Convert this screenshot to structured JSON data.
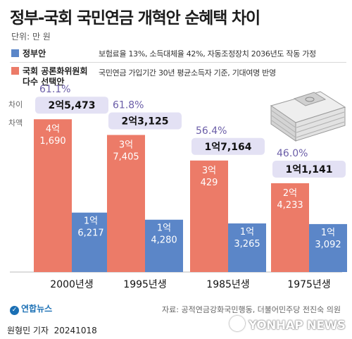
{
  "header": {
    "title": "정부-국회 국민연금 개혁안 순혜택 차이",
    "unit": "단위: 만 원"
  },
  "legend": [
    {
      "name": "정부안",
      "color": "#5b86c8",
      "desc": "보험료율 13%, 소득대체율 42%, 자동조정장치 2036년도 작동 가정"
    },
    {
      "name": "국회 공론화위원회\n다수 선택안",
      "color": "#ec7b68",
      "desc": "국민연금 가입기간 30년 평균소득자 기준, 기대여명 반영"
    }
  ],
  "side_labels": {
    "pct": "차이",
    "diff": "차액"
  },
  "colors": {
    "gov": "#5b86c8",
    "assembly": "#ec7b68",
    "badge": "#e3e1f4",
    "pct": "#6b5ea8"
  },
  "chart_data": {
    "type": "bar",
    "categories": [
      "2000년생",
      "1995년생",
      "1985년생",
      "1975년생"
    ],
    "series": [
      {
        "name": "국회 공론화위원회 다수 선택안",
        "values": [
          41690,
          37405,
          30429,
          24233
        ],
        "labels": [
          "4억\n1,690",
          "3억\n7,405",
          "3억\n429",
          "2억\n4,233"
        ]
      },
      {
        "name": "정부안",
        "values": [
          16217,
          14280,
          13265,
          13092
        ],
        "labels": [
          "1억\n6,217",
          "1억\n4,280",
          "1억\n3,265",
          "1억\n3,092"
        ]
      }
    ],
    "difference": [
      "2억5,473",
      "2억3,125",
      "1억7,164",
      "1억1,141"
    ],
    "difference_pct": [
      "61.1%",
      "61.8%",
      "56.4%",
      "46.0%"
    ]
  },
  "footer": {
    "source": "자료: 공적연금강화국민행동, 더불어민주당 전진숙 의원",
    "logo": "연합뉴스",
    "watermark": "YONHAP NEWS",
    "credit": "원형민 기자  20241018"
  }
}
